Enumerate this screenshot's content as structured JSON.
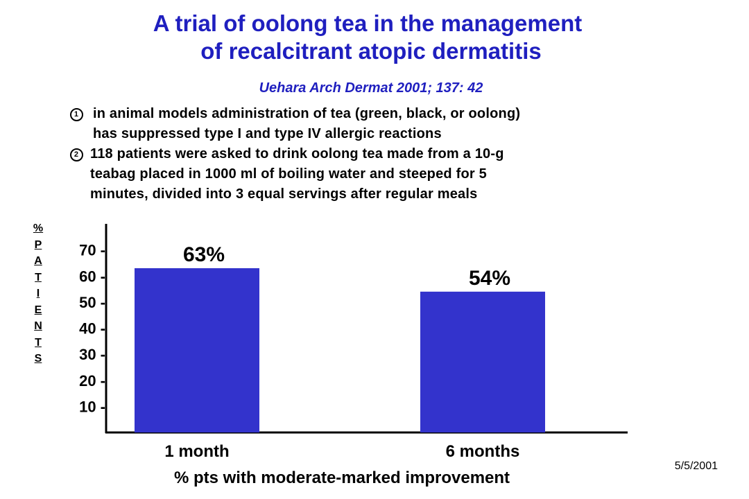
{
  "slide": {
    "title_line1": "A trial of oolong tea in the management",
    "title_line2": "of recalcitrant atopic dermatitis",
    "citation": "Uehara  Arch Dermat 2001; 137: 42",
    "bullets": [
      {
        "marker": "1",
        "line1": "in animal models administration of tea (green, black, or oolong)",
        "line2": "has suppressed type I and type IV allergic reactions"
      },
      {
        "marker": "2",
        "line1": "118 patients were asked to drink oolong tea made from a 10-g",
        "line2": "teabag placed in 1000 ml of boiling water and steeped for 5",
        "line3": "minutes, divided into 3 equal servings after regular meals"
      }
    ],
    "date": "5/5/2001"
  },
  "chart_data": {
    "type": "bar",
    "categories": [
      "1 month",
      "6 months"
    ],
    "values": [
      63,
      54
    ],
    "data_labels": [
      "63%",
      "54%"
    ],
    "ylabel": "% PATIENTS",
    "xlabel": "% pts with moderate-marked improvement",
    "yticks": [
      10,
      20,
      30,
      40,
      50,
      60,
      70
    ],
    "ytick_labels": [
      "10 -",
      "20 -",
      "30 -",
      "40 -",
      "50 -",
      "60 -",
      "70 -"
    ],
    "ylim": [
      0,
      80
    ],
    "bar_color": "#3333cc",
    "grid": false
  }
}
